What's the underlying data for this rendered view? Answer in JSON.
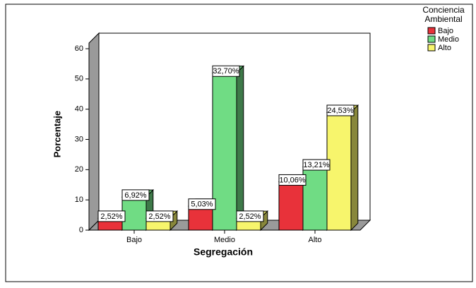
{
  "chart_data": {
    "type": "bar3d",
    "legend_title": "Conciencia Ambiental",
    "y_label": "Porcentaje",
    "x_label": "Segregación",
    "categories": [
      "Bajo",
      "Medio",
      "Alto"
    ],
    "series": [
      {
        "name": "Bajo",
        "color": "#e8323a",
        "values": [
          4,
          8,
          16
        ],
        "value_labels": [
          "2,52%",
          "5,03%",
          "10,06%"
        ]
      },
      {
        "name": "Medio",
        "color": "#70dc84",
        "values": [
          11,
          52,
          21
        ],
        "value_labels": [
          "6,92%",
          "32,70%",
          "13,21%"
        ]
      },
      {
        "name": "Alto",
        "color": "#f7f56c",
        "values": [
          4,
          4,
          39
        ],
        "value_labels": [
          "2,52%",
          "2,52%",
          "24,53%"
        ]
      }
    ],
    "ylim": [
      0,
      60
    ],
    "yticks": [
      0,
      10,
      20,
      30,
      40,
      50,
      60
    ]
  }
}
